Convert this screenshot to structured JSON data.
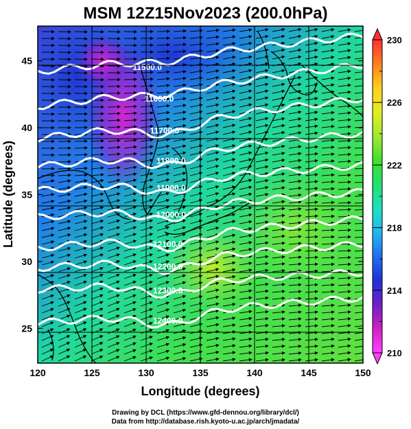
{
  "title": "MSM 12Z15Nov2023 (200.0hPa)",
  "x_axis": {
    "label": "Longitude (degrees)",
    "ticks": [
      120,
      125,
      130,
      135,
      140,
      145,
      150
    ],
    "range": [
      120,
      150
    ]
  },
  "y_axis": {
    "label": "Latitude  (degrees)",
    "ticks": [
      25,
      30,
      35,
      40,
      45
    ],
    "range": [
      22.4,
      47.6
    ]
  },
  "colorbar": {
    "labels": [
      210,
      214,
      218,
      222,
      226,
      230
    ],
    "range": [
      210,
      230
    ],
    "colors": [
      "#ff40ff",
      "#d020c0",
      "#7020c8",
      "#2030d8",
      "#2070f0",
      "#20b8f0",
      "#20e0c0",
      "#20e070",
      "#40e030",
      "#a0e830",
      "#e0f020",
      "#ffd020",
      "#ff8020",
      "#ff3030"
    ]
  },
  "contours": {
    "color": "#ffffff",
    "lines": [
      {
        "label": "11500.0",
        "lat_west": 44.2,
        "lat_east": 46.9,
        "label_lon": 130.1
      },
      {
        "label": "11600.0",
        "lat_west": 41.6,
        "lat_east": 44.7,
        "label_lon": 131.2
      },
      {
        "label": "11700.0",
        "lat_west": 39.2,
        "lat_east": 42.2,
        "label_lon": 131.7
      },
      {
        "label": "11800.0",
        "lat_west": 37.1,
        "lat_east": 39.6,
        "label_lon": 132.3
      },
      {
        "label": "11900.0",
        "lat_west": 35.3,
        "lat_east": 37.2,
        "label_lon": 132.3
      },
      {
        "label": "12000.0",
        "lat_west": 33.3,
        "lat_east": 35.2,
        "label_lon": 132.3
      },
      {
        "label": "12100.0",
        "lat_west": 31.0,
        "lat_east": 33.2,
        "label_lon": 132.0
      },
      {
        "label": "12200.0",
        "lat_west": 29.5,
        "lat_east": 31.3,
        "label_lon": 132.0
      },
      {
        "label": "12300.0",
        "lat_west": 27.9,
        "lat_east": 29.2,
        "label_lon": 132.0
      },
      {
        "label": "12400.0",
        "lat_west": 25.4,
        "lat_east": 27.3,
        "label_lon": 132.0
      }
    ]
  },
  "credits": {
    "line1": "Drawing by DCL (https://www.gfd-dennou.org/library/dcl/)",
    "line2": "Data from http://database.rish.kyoto-u.ac.jp/arch/jmadata/"
  }
}
